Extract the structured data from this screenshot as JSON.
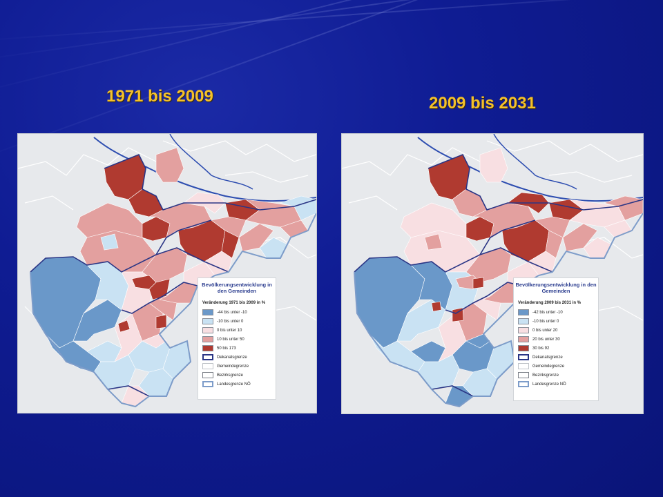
{
  "slide": {
    "title_left": "1971 bis 2009",
    "title_right": "2009 bis 2031"
  },
  "colors": {
    "background": "#0f1c93",
    "title": "#f4c12a",
    "class_dark_blue": "#6a98c9",
    "class_light_blue": "#c9e2f3",
    "class_light_pink": "#f8dfe2",
    "class_salmon": "#e3a09f",
    "class_dark_red": "#b03a30",
    "dekanat_border": "#2a3585",
    "land_border": "#7d9cc9",
    "river": "#2d4db0"
  },
  "maps": [
    {
      "legend": {
        "title": "Bevölkerungsentwicklung in den Gemeinden",
        "subtitle": "Veränderung 1971 bis 2009 in %",
        "items": [
          {
            "label": "-44 bis unter -10",
            "color": "#6a98c9"
          },
          {
            "label": "-10 bis unter 0",
            "color": "#c9e2f3"
          },
          {
            "label": "0 bis unter 10",
            "color": "#f8dfe2"
          },
          {
            "label": "10 bis unter 50",
            "color": "#e3a09f"
          },
          {
            "label": "50 bis 173",
            "color": "#b03a30"
          },
          {
            "label": "Dekanatsgrenze",
            "color": "#ffffff",
            "border": "#2a3585",
            "thick": true
          },
          {
            "label": "Gemeindegrenze",
            "color": "#ffffff",
            "border": "#bfc3c8"
          },
          {
            "label": "Bezirksgrenze",
            "color": "#ffffff",
            "border": "#7c8088"
          },
          {
            "label": "Landesgrenze NÖ",
            "color": "#ffffff",
            "border": "#7d9cc9",
            "thick": true
          }
        ]
      }
    },
    {
      "legend": {
        "title": "Bevölkerungsentwicklung in den Gemeinden",
        "subtitle": "Veränderung 2009 bis 2031 in %",
        "items": [
          {
            "label": "-42 bis unter -10",
            "color": "#6a98c9"
          },
          {
            "label": "-10 bis unter 0",
            "color": "#c9e2f3"
          },
          {
            "label": "0 bis unter 20",
            "color": "#f8dfe2"
          },
          {
            "label": "20 bis unter 30",
            "color": "#e3a09f"
          },
          {
            "label": "30 bis 92",
            "color": "#b03a30"
          },
          {
            "label": "Dekanatsgrenze",
            "color": "#ffffff",
            "border": "#2a3585",
            "thick": true
          },
          {
            "label": "Gemeindegrenze",
            "color": "#ffffff",
            "border": "#bfc3c8"
          },
          {
            "label": "Bezirksgrenze",
            "color": "#ffffff",
            "border": "#7c8088"
          },
          {
            "label": "Landesgrenze NÖ",
            "color": "#ffffff",
            "border": "#7d9cc9",
            "thick": true
          }
        ]
      }
    }
  ]
}
